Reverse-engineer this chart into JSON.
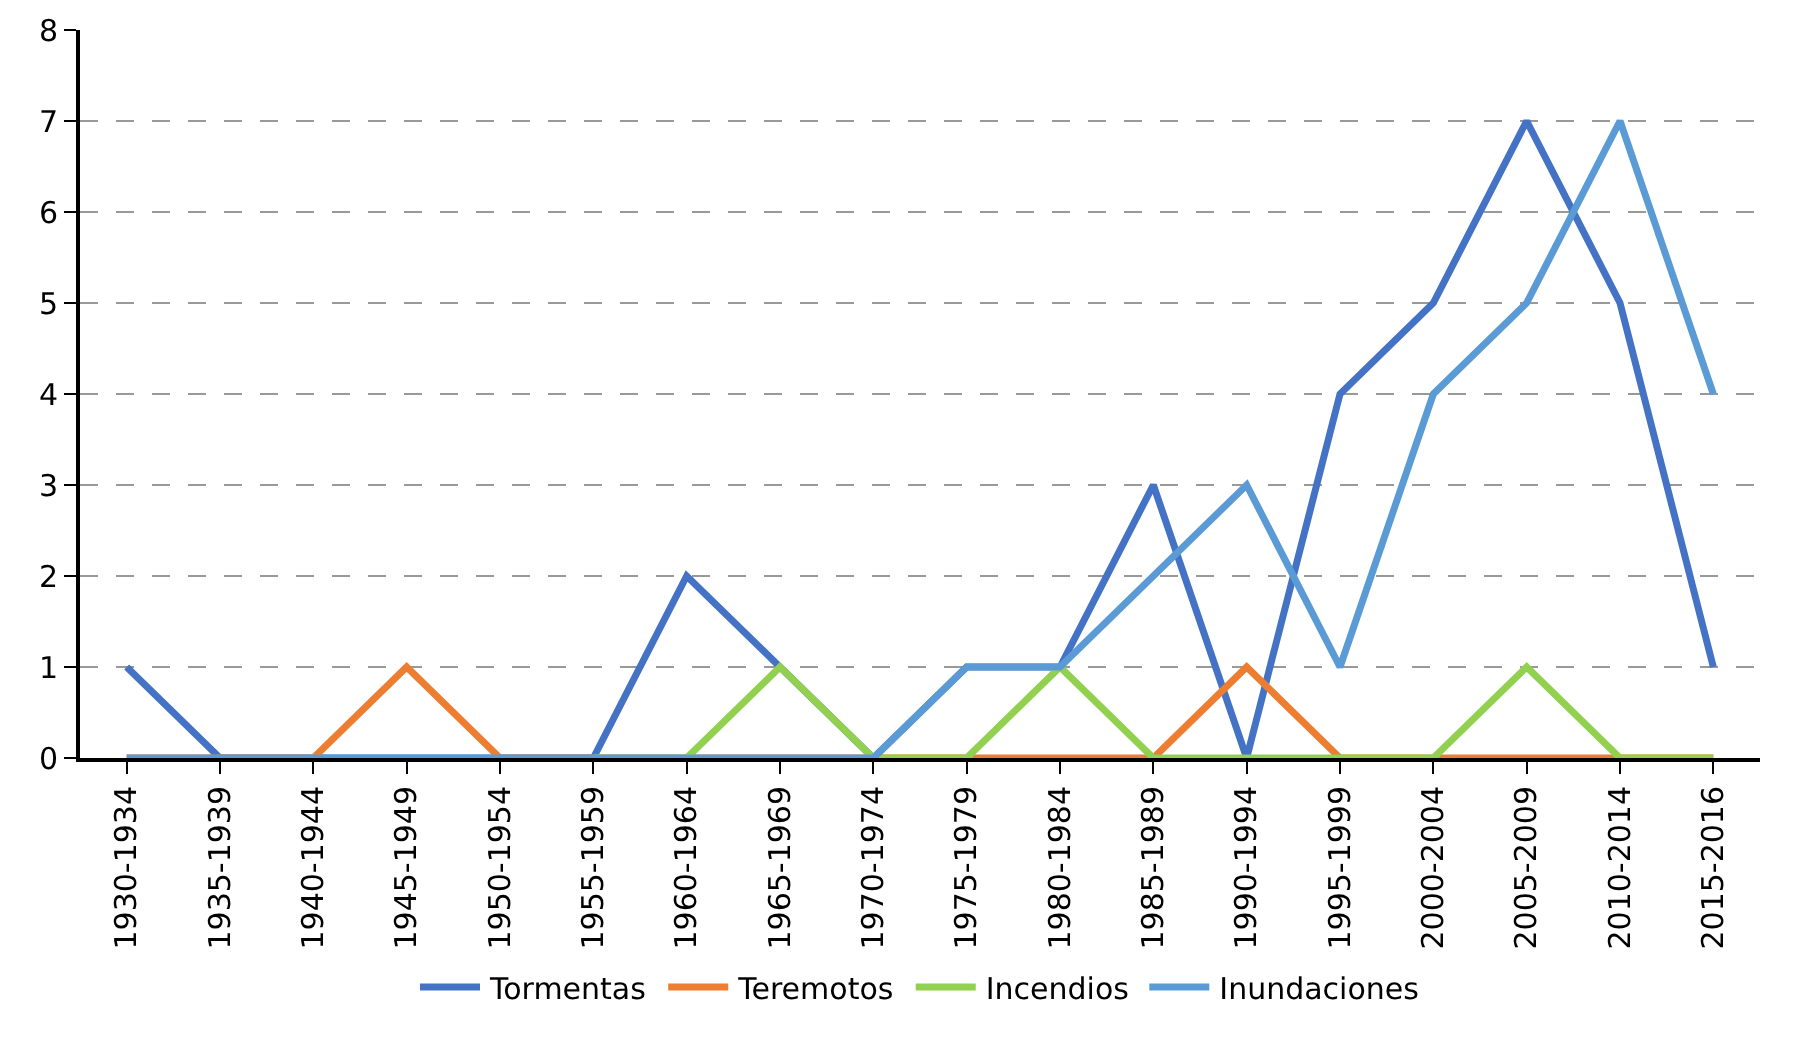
{
  "chart_data": {
    "type": "line",
    "categories": [
      "1930-1934",
      "1935-1939",
      "1940-1944",
      "1945-1949",
      "1950-1954",
      "1955-1959",
      "1960-1964",
      "1965-1969",
      "1970-1974",
      "1975-1979",
      "1980-1984",
      "1985-1989",
      "1990-1994",
      "1995-1999",
      "2000-2004",
      "2005-2009",
      "2010-2014",
      "2015-2016"
    ],
    "series": [
      {
        "name": "Tormentas",
        "color": "#4472c4",
        "values": [
          1,
          0,
          0,
          0,
          0,
          0,
          2,
          1,
          0,
          1,
          1,
          3,
          0,
          4,
          5,
          7,
          5,
          1
        ]
      },
      {
        "name": "Teremotos",
        "color": "#ed7d31",
        "values": [
          0,
          0,
          0,
          1,
          0,
          0,
          0,
          0,
          0,
          0,
          0,
          0,
          1,
          0,
          0,
          0,
          0,
          0
        ]
      },
      {
        "name": "Incendios",
        "color": "#92d050",
        "values": [
          null,
          null,
          null,
          null,
          null,
          0,
          0,
          1,
          0,
          0,
          1,
          0,
          0,
          0,
          0,
          1,
          0,
          0
        ]
      },
      {
        "name": "Inundaciones",
        "color": "#5b9bd5",
        "values": [
          0,
          0,
          0,
          0,
          0,
          0,
          0,
          0,
          0,
          1,
          1,
          2,
          3,
          1,
          4,
          5,
          7,
          4
        ]
      }
    ],
    "ylim": [
      0,
      8
    ],
    "yticks": [
      0,
      1,
      2,
      3,
      4,
      5,
      6,
      7,
      8
    ],
    "grid": "y",
    "legend": "bottom",
    "marker": "none",
    "line_style": "solid"
  }
}
